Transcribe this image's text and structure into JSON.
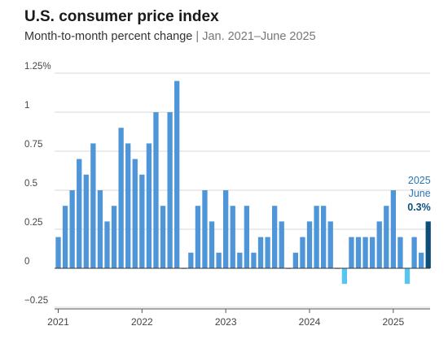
{
  "header": {
    "title": "U.S. consumer price index",
    "subtitle_main": "Month-to-month percent change",
    "subtitle_sep": "|",
    "subtitle_range": "Jan. 2021–June 2025"
  },
  "colors": {
    "bar": "#4e96d8",
    "negative_bar": "#56c5f0",
    "highlight_bar": "#0d4f7a",
    "annotation_year": "#2b74b5",
    "annotation_value": "#0d4f7a",
    "grid": "#d9d9d9"
  },
  "chart_data": {
    "type": "bar",
    "title": "U.S. consumer price index",
    "subtitle": "Month-to-month percent change | Jan. 2021–June 2025",
    "xlabel": "",
    "ylabel": "",
    "ylim": [
      -0.25,
      1.25
    ],
    "yticks": [
      {
        "value": 1.25,
        "label": "1.25%"
      },
      {
        "value": 1.0,
        "label": "1"
      },
      {
        "value": 0.75,
        "label": "0.75"
      },
      {
        "value": 0.5,
        "label": "0.5"
      },
      {
        "value": 0.25,
        "label": "0.25"
      },
      {
        "value": 0,
        "label": "0"
      },
      {
        "value": -0.25,
        "label": "−0.25"
      }
    ],
    "xticks": [
      {
        "index": 0,
        "label": "2021"
      },
      {
        "index": 12,
        "label": "2022"
      },
      {
        "index": 24,
        "label": "2023"
      },
      {
        "index": 36,
        "label": "2024"
      },
      {
        "index": 48,
        "label": "2025"
      }
    ],
    "grid": true,
    "categories": [
      "Jan 2021",
      "Feb 2021",
      "Mar 2021",
      "Apr 2021",
      "May 2021",
      "Jun 2021",
      "Jul 2021",
      "Aug 2021",
      "Sep 2021",
      "Oct 2021",
      "Nov 2021",
      "Dec 2021",
      "Jan 2022",
      "Feb 2022",
      "Mar 2022",
      "Apr 2022",
      "May 2022",
      "Jun 2022",
      "Jul 2022",
      "Aug 2022",
      "Sep 2022",
      "Oct 2022",
      "Nov 2022",
      "Dec 2022",
      "Jan 2023",
      "Feb 2023",
      "Mar 2023",
      "Apr 2023",
      "May 2023",
      "Jun 2023",
      "Jul 2023",
      "Aug 2023",
      "Sep 2023",
      "Oct 2023",
      "Nov 2023",
      "Dec 2023",
      "Jan 2024",
      "Feb 2024",
      "Mar 2024",
      "Apr 2024",
      "May 2024",
      "Jun 2024",
      "Jul 2024",
      "Aug 2024",
      "Sep 2024",
      "Oct 2024",
      "Nov 2024",
      "Dec 2024",
      "Jan 2025",
      "Feb 2025",
      "Mar 2025",
      "Apr 2025",
      "May 2025",
      "Jun 2025"
    ],
    "values": [
      0.2,
      0.4,
      0.5,
      0.7,
      0.6,
      0.8,
      0.5,
      0.3,
      0.4,
      0.9,
      0.8,
      0.7,
      0.6,
      0.8,
      1.0,
      0.4,
      1.0,
      1.2,
      0.0,
      0.1,
      0.4,
      0.5,
      0.3,
      0.1,
      0.5,
      0.4,
      0.1,
      0.4,
      0.1,
      0.2,
      0.2,
      0.4,
      0.3,
      0.0,
      0.1,
      0.2,
      0.3,
      0.4,
      0.4,
      0.3,
      0.0,
      -0.1,
      0.2,
      0.2,
      0.2,
      0.2,
      0.3,
      0.4,
      0.5,
      0.2,
      -0.1,
      0.2,
      0.1,
      0.3
    ],
    "highlight": {
      "index": 53,
      "year_label": "2025",
      "month_label": "June",
      "value_label": "0.3%"
    }
  }
}
